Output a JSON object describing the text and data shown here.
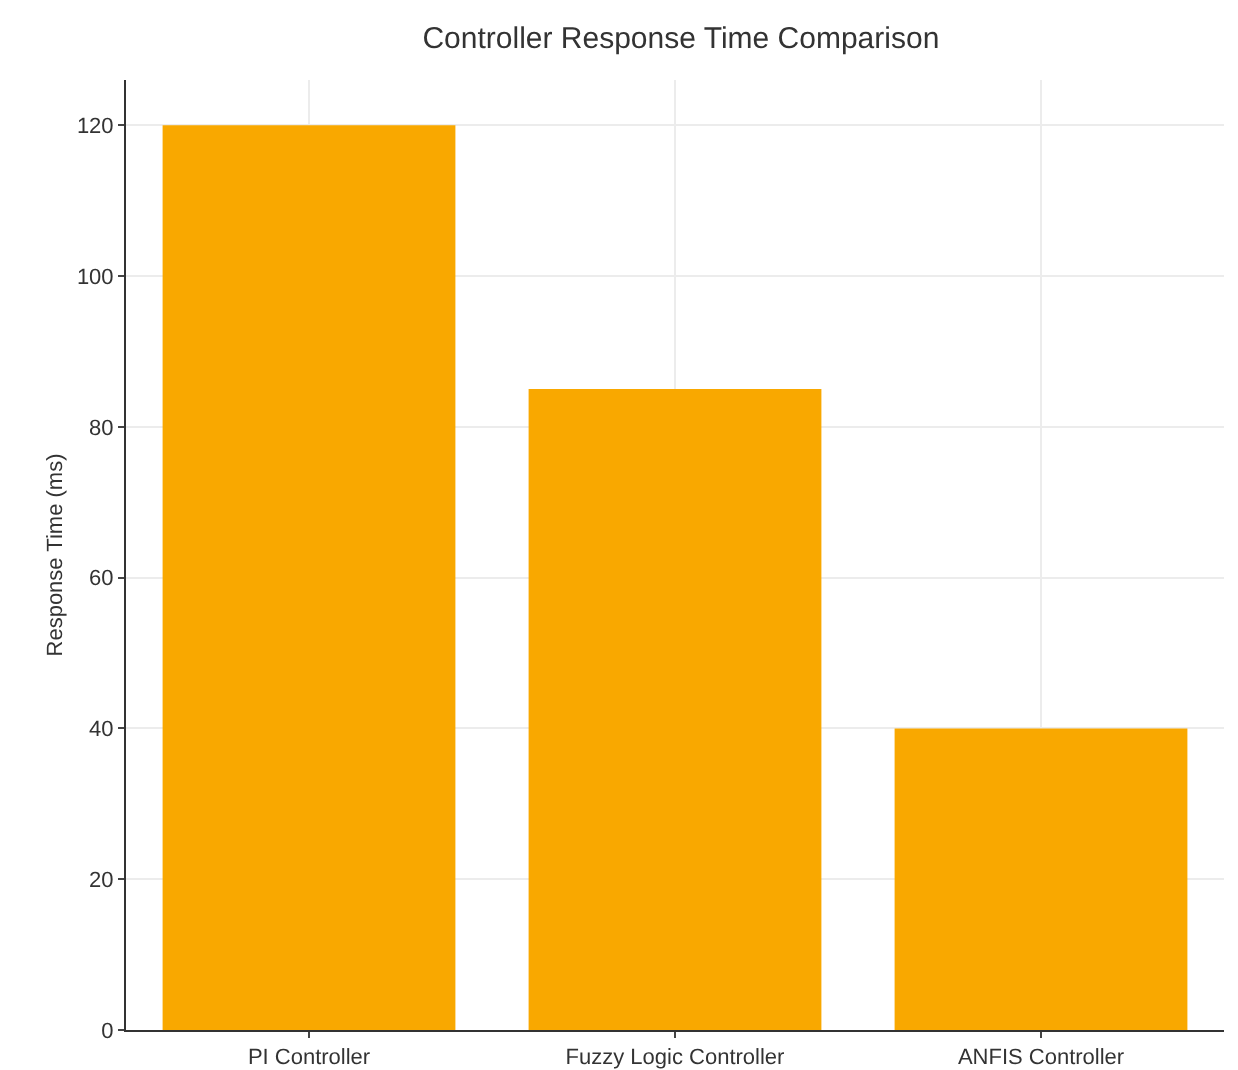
{
  "chart_data": {
    "type": "bar",
    "title": "Controller Response Time Comparison",
    "ylabel": "Response Time (ms)",
    "categories": [
      "PI Controller",
      "Fuzzy Logic Controller",
      "ANFIS Controller"
    ],
    "values": [
      120,
      85,
      40
    ],
    "color": "#f9a800",
    "ylim": [
      0,
      126
    ],
    "yticks": [
      0,
      20,
      40,
      60,
      80,
      100,
      120
    ],
    "grid": true
  }
}
